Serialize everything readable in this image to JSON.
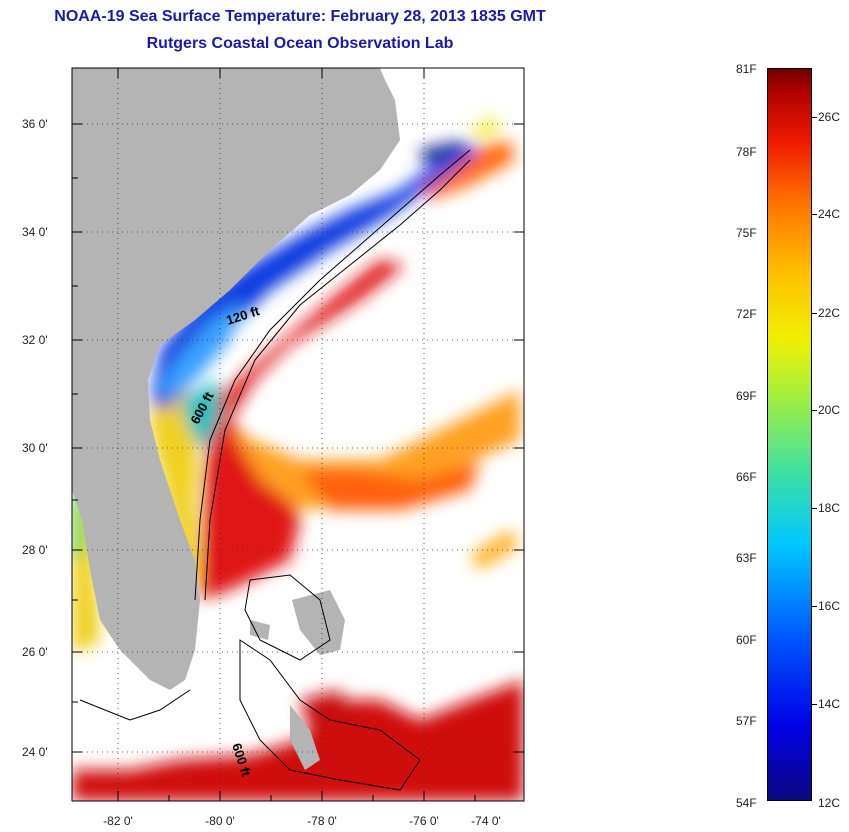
{
  "title": "NOAA-19 Sea Surface Temperature:  February 28, 2013 1835 GMT",
  "subtitle": "Rutgers Coastal Ocean Observation Lab",
  "map": {
    "lat_labels": [
      "36 0'",
      "34 0'",
      "32 0'",
      "30 0'",
      "28 0'",
      "26 0'",
      "24 0'"
    ],
    "lon_labels": [
      "-82 0'",
      "-80 0'",
      "-78 0'",
      "-76 0'",
      "-74 0'"
    ],
    "contour_labels": [
      "120 ft",
      "600 ft",
      "600 ft"
    ],
    "colors": {
      "land": "#b4b4b4",
      "cloud": "#ffffff"
    }
  },
  "colorbar": {
    "fahrenheit": [
      "81F",
      "78F",
      "75F",
      "72F",
      "69F",
      "66F",
      "63F",
      "60F",
      "57F",
      "54F"
    ],
    "celsius": [
      "26C",
      "24C",
      "22C",
      "20C",
      "18C",
      "16C",
      "14C",
      "12C"
    ]
  }
}
